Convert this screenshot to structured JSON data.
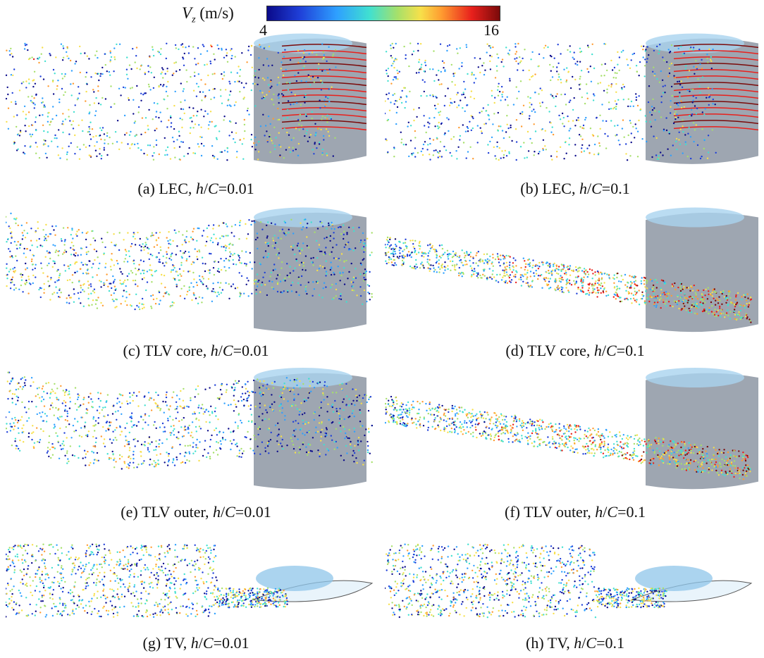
{
  "colorbar": {
    "variable": "V",
    "subscript": "z",
    "unit": "(m/s)",
    "min": "4",
    "max": "16",
    "colors": [
      "#0a0a8a",
      "#1f3fd8",
      "#2ea0ff",
      "#40e0d0",
      "#a6e06a",
      "#f7e04a",
      "#ff9b30",
      "#e8201c",
      "#7a0a0a"
    ]
  },
  "panels": [
    {
      "letter": "(a)",
      "name": "LEC",
      "ratio_h": "h",
      "ratio_c": "C",
      "value": "=0.01"
    },
    {
      "letter": "(b)",
      "name": "LEC",
      "ratio_h": "h",
      "ratio_c": "C",
      "value": "=0.1"
    },
    {
      "letter": "(c)",
      "name": "TLV core",
      "ratio_h": "h",
      "ratio_c": "C",
      "value": "=0.01"
    },
    {
      "letter": "(d)",
      "name": "TLV core",
      "ratio_h": "h",
      "ratio_c": "C",
      "value": "=0.1"
    },
    {
      "letter": "(e)",
      "name": "TLV outer",
      "ratio_h": "h",
      "ratio_c": "C",
      "value": "=0.01"
    },
    {
      "letter": "(f)",
      "name": "TLV outer",
      "ratio_h": "h",
      "ratio_c": "C",
      "value": "=0.1"
    },
    {
      "letter": "(g)",
      "name": "TV",
      "ratio_h": "h",
      "ratio_c": "C",
      "value": "=0.01"
    },
    {
      "letter": "(h)",
      "name": "TV",
      "ratio_h": "h",
      "ratio_c": "C",
      "value": "=0.1"
    }
  ]
}
